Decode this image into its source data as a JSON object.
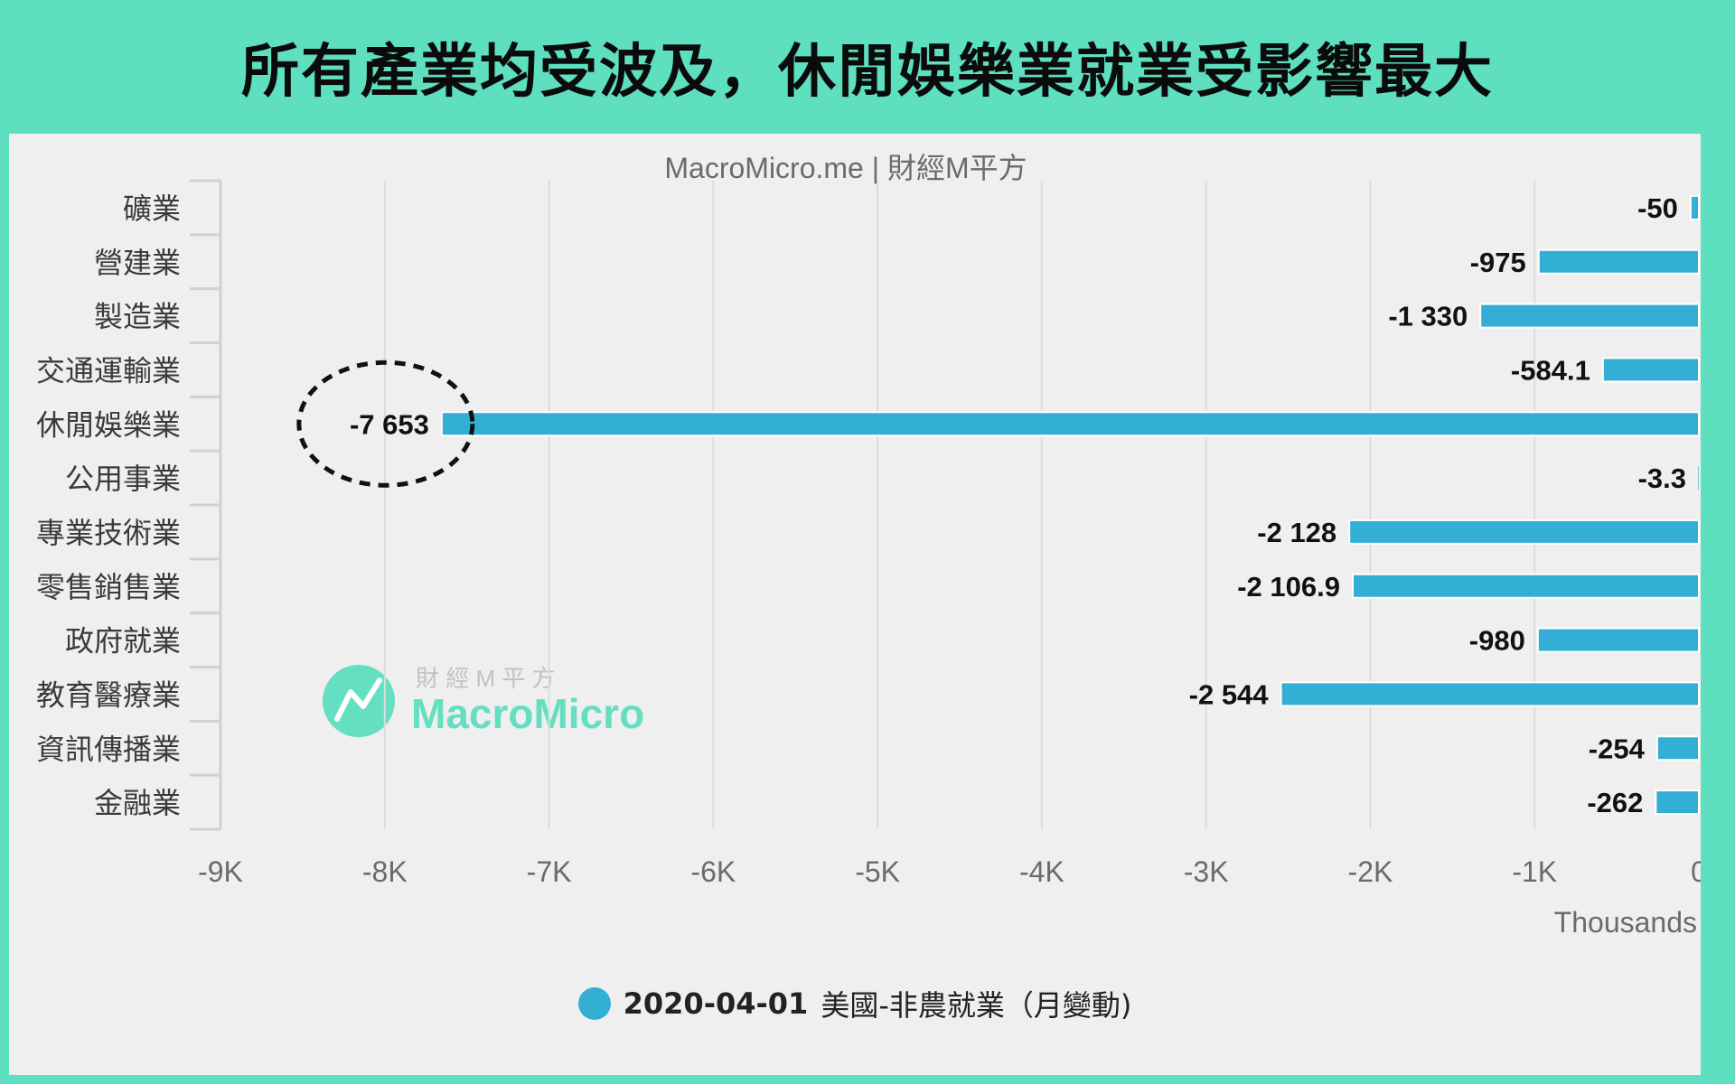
{
  "header": {
    "title": "所有產業均受波及，休閒娛樂業就業受影響最大"
  },
  "chart_data": {
    "type": "bar",
    "orientation": "horizontal",
    "subtitle": "MacroMicro.me | 財經M平方",
    "categories": [
      "礦業",
      "營建業",
      "製造業",
      "交通運輸業",
      "休閒娛樂業",
      "公用事業",
      "專業技術業",
      "零售銷售業",
      "政府就業",
      "教育醫療業",
      "資訊傳播業",
      "金融業"
    ],
    "series": [
      {
        "name": "美國-非農就業（月變動)",
        "values": [
          -50,
          -975,
          -1330,
          -584.1,
          -7653,
          -3.3,
          -2128,
          -2106.9,
          -980,
          -2544,
          -254,
          -262
        ],
        "data_labels": [
          "-50",
          "-975",
          "-1 330",
          "-584.1",
          "-7 653",
          "-3.3",
          "-2 128",
          "-2 106.9",
          "-980",
          "-2 544",
          "-254",
          "-262"
        ]
      }
    ],
    "xlim": [
      -9000,
      0
    ],
    "x_ticks": [
      -9000,
      -8000,
      -7000,
      -6000,
      -5000,
      -4000,
      -3000,
      -2000,
      -1000,
      0
    ],
    "x_tick_labels": [
      "-9K",
      "-8K",
      "-7K",
      "-6K",
      "-5K",
      "-4K",
      "-3K",
      "-2K",
      "-1K",
      "0"
    ],
    "x_unit": "Thousands",
    "grid": true,
    "highlight_category": "休閒娛樂業",
    "legend": {
      "date": "2020-04-01",
      "label": "美國-非農就業（月變動)",
      "position": "bottom"
    },
    "watermark": {
      "top": "財 經 M 平 方",
      "main": "MacroMicro"
    },
    "colors": {
      "bar": "#33afd6",
      "background": "#efefef",
      "frame": "#5ddfc0",
      "watermark": "#5ddfc0"
    }
  }
}
